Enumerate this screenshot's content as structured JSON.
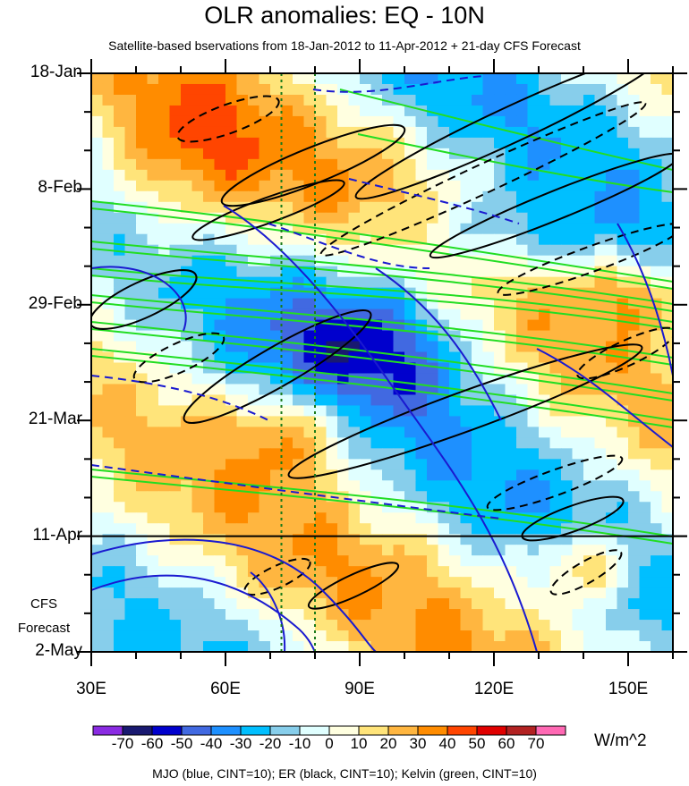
{
  "chart_data": {
    "type": "heatmap",
    "title": "OLR anomalies: EQ - 10N",
    "subtitle": "Satellite-based bservations from 18-Jan-2012 to 11-Apr-2012 + 21-day CFS Forecast",
    "x_ticks": [
      "30E",
      "60E",
      "90E",
      "120E",
      "150E"
    ],
    "x_tick_values": [
      30,
      60,
      90,
      120,
      150
    ],
    "xlim": [
      30,
      160
    ],
    "y_ticks": [
      "18-Jan",
      "8-Feb",
      "29-Feb",
      "21-Mar",
      "11-Apr",
      "2-May"
    ],
    "y_tick_days": [
      0,
      21,
      42,
      63,
      84,
      105
    ],
    "ylim_days": [
      0,
      105
    ],
    "forecast_start_day": 84,
    "forecast_label_1": "CFS",
    "forecast_label_2": "Forecast",
    "reference_lines_lon": [
      72.5,
      80
    ],
    "colorbar": {
      "units": "W/m^2",
      "labels": [
        "-70",
        "-60",
        "-50",
        "-40",
        "-30",
        "-20",
        "-10",
        "0",
        "10",
        "20",
        "30",
        "40",
        "50",
        "60",
        "70"
      ],
      "colors": [
        "#8a2be2",
        "#191970",
        "#0000cd",
        "#4169e1",
        "#1e90ff",
        "#00bfff",
        "#87ceeb",
        "#e0ffff",
        "#ffffe0",
        "#ffe47a",
        "#ffb640",
        "#ff8c00",
        "#ff4500",
        "#e00000",
        "#b22222",
        "#ff69b4"
      ]
    },
    "footer": "MJO (blue, CINT=10); ER (black, CINT=10); Kelvin (green, CINT=10)"
  }
}
